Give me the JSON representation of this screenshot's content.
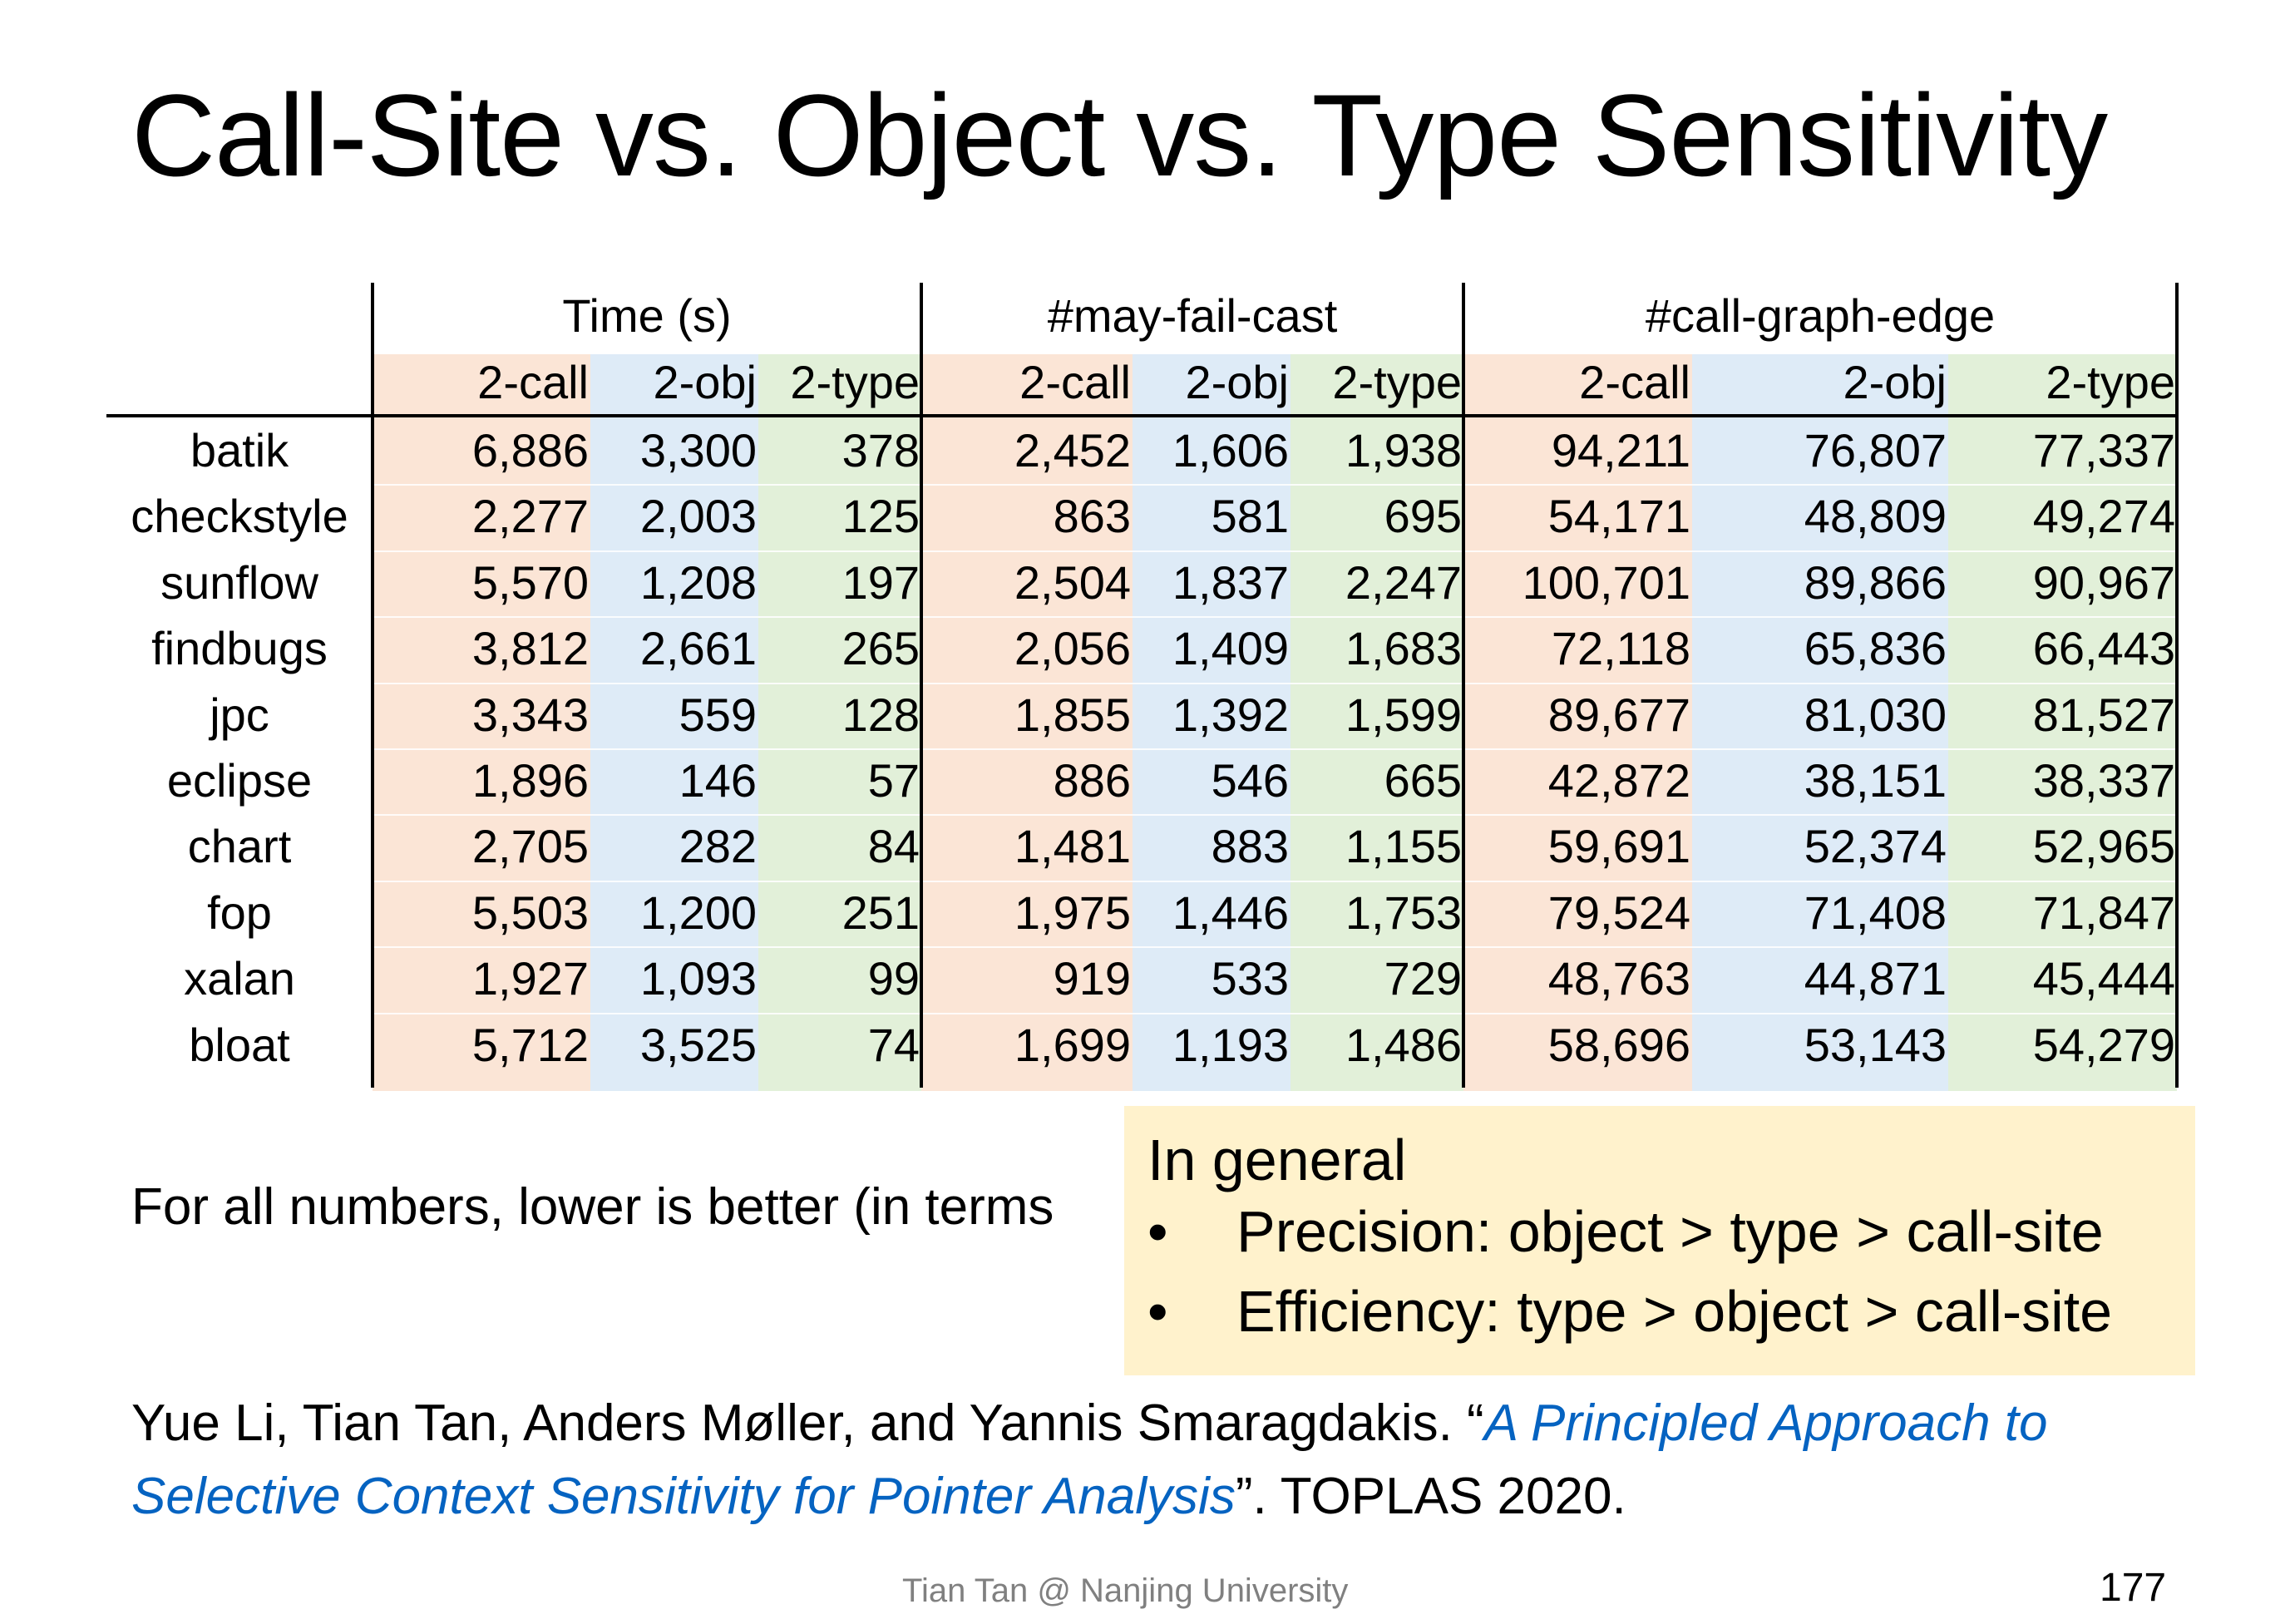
{
  "slide": {
    "title": "Call-Site vs. Object vs. Type Sensitivity",
    "note": "For all numbers, lower is better (in terms",
    "footer": "Tian Tan @ Nanjing University",
    "page_number": "177"
  },
  "table": {
    "groups": [
      "Time (s)",
      "#may-fail-cast",
      "#call-graph-edge"
    ],
    "subheaders": [
      "2-call",
      "2-obj",
      "2-type",
      "2-call",
      "2-obj",
      "2-type",
      "2-call",
      "2-obj",
      "2-type"
    ],
    "colors": {
      "call": "#fbe5d6",
      "obj": "#deebf7",
      "type": "#e2f0d9"
    },
    "rows": [
      {
        "name": "batik",
        "values": [
          "6,886",
          "3,300",
          "378",
          "2,452",
          "1,606",
          "1,938",
          "94,211",
          "76,807",
          "77,337"
        ]
      },
      {
        "name": "checkstyle",
        "values": [
          "2,277",
          "2,003",
          "125",
          "863",
          "581",
          "695",
          "54,171",
          "48,809",
          "49,274"
        ]
      },
      {
        "name": "sunflow",
        "values": [
          "5,570",
          "1,208",
          "197",
          "2,504",
          "1,837",
          "2,247",
          "100,701",
          "89,866",
          "90,967"
        ]
      },
      {
        "name": "findbugs",
        "values": [
          "3,812",
          "2,661",
          "265",
          "2,056",
          "1,409",
          "1,683",
          "72,118",
          "65,836",
          "66,443"
        ]
      },
      {
        "name": "jpc",
        "values": [
          "3,343",
          "559",
          "128",
          "1,855",
          "1,392",
          "1,599",
          "89,677",
          "81,030",
          "81,527"
        ]
      },
      {
        "name": "eclipse",
        "values": [
          "1,896",
          "146",
          "57",
          "886",
          "546",
          "665",
          "42,872",
          "38,151",
          "38,337"
        ]
      },
      {
        "name": "chart",
        "values": [
          "2,705",
          "282",
          "84",
          "1,481",
          "883",
          "1,155",
          "59,691",
          "52,374",
          "52,965"
        ]
      },
      {
        "name": "fop",
        "values": [
          "5,503",
          "1,200",
          "251",
          "1,975",
          "1,446",
          "1,753",
          "79,524",
          "71,408",
          "71,847"
        ]
      },
      {
        "name": "xalan",
        "values": [
          "1,927",
          "1,093",
          "99",
          "919",
          "533",
          "729",
          "48,763",
          "44,871",
          "45,444"
        ]
      },
      {
        "name": "bloat",
        "values": [
          "5,712",
          "3,525",
          "74",
          "1,699",
          "1,193",
          "1,486",
          "58,696",
          "53,143",
          "54,279"
        ]
      }
    ]
  },
  "callout": {
    "heading": "In general",
    "bullet_glyph": "•",
    "bullets": [
      "Precision: object > type > call-site",
      "Efficiency: type > object > call-site"
    ],
    "color": "#fff2cc"
  },
  "citation": {
    "authors": "Yue Li, Tian Tan, Anders Møller, and Yannis Smaragdakis. “",
    "paper_title": "A Principled Approach to Selective Context Sensitivity for Pointer Analysis",
    "venue": "”. TOPLAS 2020.",
    "link_color": "#0563c1"
  }
}
